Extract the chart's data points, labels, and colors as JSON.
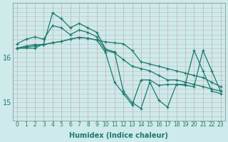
{
  "xlabel": "Humidex (Indice chaleur)",
  "bg_color": "#ceeaea",
  "line_color": "#1a7a6e",
  "grid_color": "#b8c8c0",
  "xlim": [
    -0.5,
    23.5
  ],
  "ylim": [
    14.6,
    17.2
  ],
  "yticks": [
    15,
    16
  ],
  "xticks": [
    0,
    1,
    2,
    3,
    4,
    5,
    6,
    7,
    8,
    9,
    10,
    11,
    12,
    13,
    14,
    15,
    16,
    17,
    18,
    19,
    20,
    21,
    22,
    23
  ],
  "series": [
    {
      "x": [
        0,
        1,
        2,
        3,
        4,
        5,
        6,
        7,
        8,
        9,
        10,
        11,
        12,
        13,
        14,
        15,
        16,
        17,
        18,
        19,
        20,
        21,
        22,
        23
      ],
      "y": [
        16.3,
        16.4,
        16.45,
        16.4,
        16.7,
        16.65,
        16.5,
        16.6,
        16.55,
        16.45,
        16.15,
        16.1,
        15.95,
        15.8,
        15.75,
        15.7,
        15.6,
        15.5,
        15.5,
        15.45,
        15.4,
        15.35,
        15.3,
        15.25
      ]
    },
    {
      "x": [
        0,
        1,
        2,
        3,
        4,
        5,
        6,
        7,
        8,
        9,
        10,
        11,
        12,
        13,
        14,
        15,
        16,
        17,
        18,
        19,
        20,
        21,
        22,
        23
      ],
      "y": [
        16.2,
        16.25,
        16.28,
        16.28,
        16.32,
        16.35,
        16.4,
        16.44,
        16.42,
        16.38,
        16.34,
        16.32,
        16.3,
        16.15,
        15.9,
        15.85,
        15.8,
        15.75,
        15.7,
        15.65,
        15.6,
        15.55,
        15.45,
        15.35
      ]
    },
    {
      "x": [
        0,
        1,
        2,
        3,
        4,
        5,
        6,
        7,
        8,
        9,
        10,
        11,
        12,
        13,
        14,
        15,
        16,
        17,
        18,
        19,
        20,
        21,
        22,
        23
      ],
      "y": [
        16.2,
        16.22,
        16.25,
        16.28,
        16.32,
        16.35,
        16.4,
        16.44,
        16.42,
        16.38,
        16.1,
        15.45,
        15.2,
        14.95,
        15.5,
        15.5,
        15.38,
        15.4,
        15.4,
        15.4,
        16.15,
        15.7,
        15.25,
        15.2
      ]
    },
    {
      "x": [
        0,
        2,
        3,
        4,
        5,
        6,
        7,
        8,
        9,
        10,
        11,
        12,
        13,
        14,
        15,
        16,
        17,
        18,
        19,
        20,
        21,
        22,
        23
      ],
      "y": [
        16.2,
        16.2,
        16.3,
        16.98,
        16.85,
        16.65,
        16.75,
        16.65,
        16.55,
        16.18,
        16.12,
        15.25,
        15.0,
        14.87,
        15.45,
        15.05,
        14.9,
        15.4,
        15.38,
        15.35,
        16.15,
        15.7,
        15.25
      ]
    }
  ]
}
